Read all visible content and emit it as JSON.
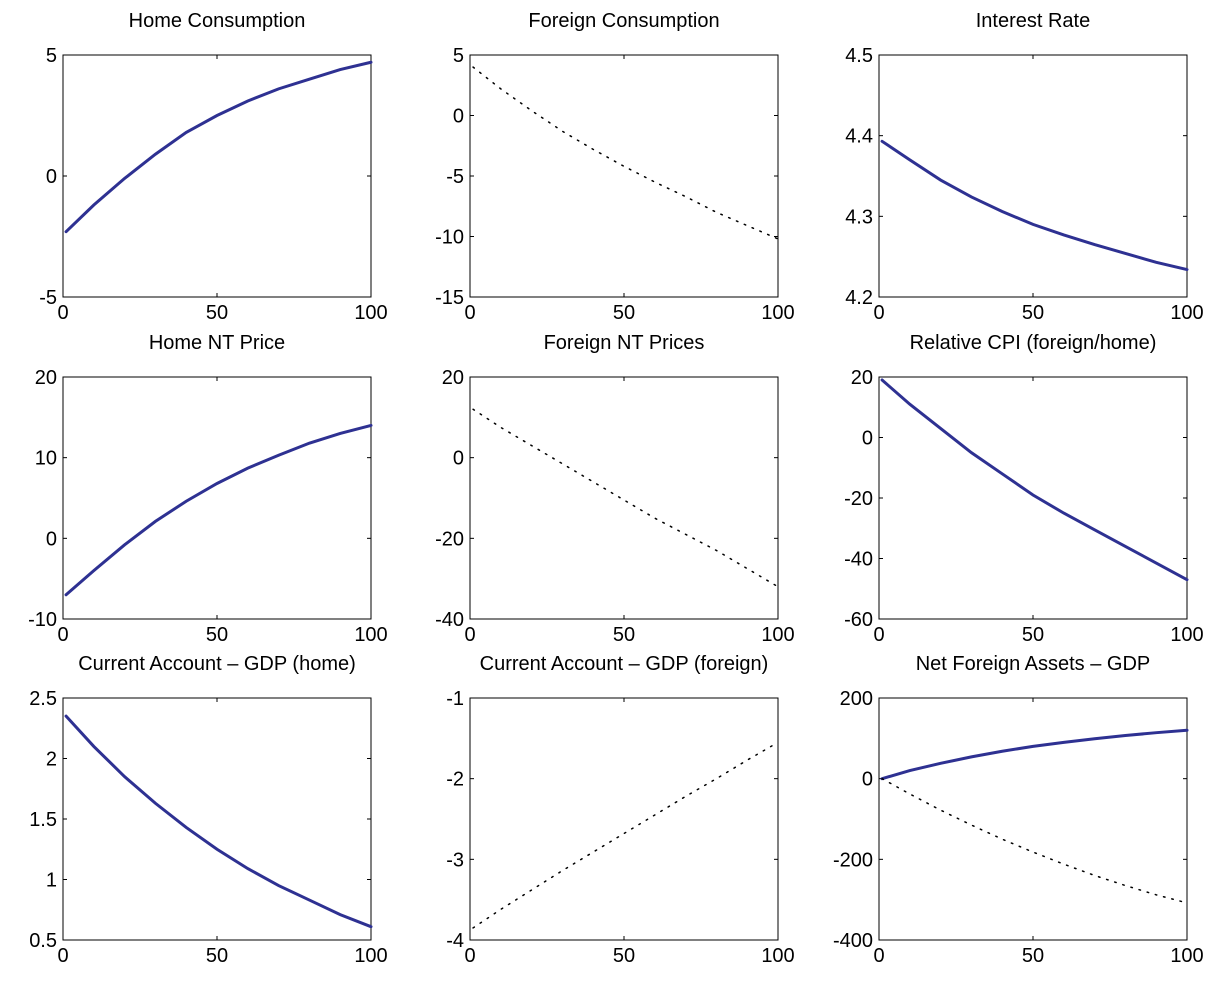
{
  "chart_data": [
    {
      "type": "line",
      "title": "Home Consumption",
      "x": [
        1,
        10,
        20,
        30,
        40,
        50,
        60,
        70,
        80,
        90,
        100
      ],
      "xlim": [
        0,
        100
      ],
      "xticks": [
        0,
        50,
        100
      ],
      "ylim": [
        -5,
        5
      ],
      "yticks": [
        -5,
        0,
        5
      ],
      "series": [
        {
          "color": "#2e3192",
          "style": "solid",
          "values": [
            -2.3,
            -1.2,
            -0.1,
            0.9,
            1.8,
            2.5,
            3.1,
            3.6,
            4.0,
            4.4,
            4.7
          ]
        }
      ]
    },
    {
      "type": "line",
      "title": "Foreign Consumption",
      "x": [
        1,
        10,
        20,
        30,
        40,
        50,
        60,
        70,
        80,
        90,
        100
      ],
      "xlim": [
        0,
        100
      ],
      "xticks": [
        0,
        50,
        100
      ],
      "ylim": [
        -15,
        5
      ],
      "yticks": [
        -15,
        -10,
        -5,
        0,
        5
      ],
      "series": [
        {
          "color": "#000000",
          "style": "dotted",
          "values": [
            4,
            2.2,
            0.4,
            -1.3,
            -2.8,
            -4.2,
            -5.5,
            -6.7,
            -8.0,
            -9.1,
            -10.2
          ]
        }
      ]
    },
    {
      "type": "line",
      "title": "Interest Rate",
      "x": [
        1,
        10,
        20,
        30,
        40,
        50,
        60,
        70,
        80,
        90,
        100
      ],
      "xlim": [
        0,
        100
      ],
      "xticks": [
        0,
        50,
        100
      ],
      "ylim": [
        4.2,
        4.5
      ],
      "yticks": [
        4.2,
        4.3,
        4.4,
        4.5
      ],
      "series": [
        {
          "color": "#2e3192",
          "style": "solid",
          "values": [
            4.393,
            4.37,
            4.345,
            4.324,
            4.306,
            4.29,
            4.277,
            4.265,
            4.254,
            4.243,
            4.234
          ]
        }
      ]
    },
    {
      "type": "line",
      "title": "Home NT Price",
      "x": [
        1,
        10,
        20,
        30,
        40,
        50,
        60,
        70,
        80,
        90,
        100
      ],
      "xlim": [
        0,
        100
      ],
      "xticks": [
        0,
        50,
        100
      ],
      "ylim": [
        -10,
        20
      ],
      "yticks": [
        -10,
        0,
        10,
        20
      ],
      "series": [
        {
          "color": "#2e3192",
          "style": "solid",
          "values": [
            -7,
            -4,
            -0.8,
            2.1,
            4.6,
            6.8,
            8.7,
            10.3,
            11.8,
            13,
            14
          ]
        }
      ]
    },
    {
      "type": "line",
      "title": "Foreign NT Prices",
      "x": [
        1,
        10,
        20,
        30,
        40,
        50,
        60,
        70,
        80,
        90,
        100
      ],
      "xlim": [
        0,
        100
      ],
      "xticks": [
        0,
        50,
        100
      ],
      "ylim": [
        -40,
        20
      ],
      "yticks": [
        -40,
        -20,
        0,
        20
      ],
      "series": [
        {
          "color": "#000000",
          "style": "dotted",
          "values": [
            12,
            7.5,
            3,
            -1.5,
            -6,
            -10.5,
            -15,
            -19,
            -23,
            -27.5,
            -32
          ]
        }
      ]
    },
    {
      "type": "line",
      "title": "Relative CPI (foreign/home)",
      "x": [
        1,
        10,
        20,
        30,
        40,
        50,
        60,
        70,
        80,
        90,
        100
      ],
      "xlim": [
        0,
        100
      ],
      "xticks": [
        0,
        50,
        100
      ],
      "ylim": [
        -60,
        20
      ],
      "yticks": [
        -60,
        -40,
        -20,
        0,
        20
      ],
      "series": [
        {
          "color": "#2e3192",
          "style": "solid",
          "values": [
            19,
            11,
            3,
            -5,
            -12,
            -19,
            -25,
            -30.5,
            -36,
            -41.5,
            -47
          ]
        }
      ]
    },
    {
      "type": "line",
      "title": "Current Account – GDP (home)",
      "x": [
        1,
        10,
        20,
        30,
        40,
        50,
        60,
        70,
        80,
        90,
        100
      ],
      "xlim": [
        0,
        100
      ],
      "xticks": [
        0,
        50,
        100
      ],
      "ylim": [
        0.5,
        2.5
      ],
      "yticks": [
        0.5,
        1,
        1.5,
        2,
        2.5
      ],
      "series": [
        {
          "color": "#2e3192",
          "style": "solid",
          "values": [
            2.35,
            2.1,
            1.85,
            1.63,
            1.43,
            1.25,
            1.09,
            0.95,
            0.83,
            0.71,
            0.61
          ]
        }
      ]
    },
    {
      "type": "line",
      "title": "Current Account – GDP (foreign)",
      "x": [
        1,
        10,
        20,
        30,
        40,
        50,
        60,
        70,
        80,
        90,
        100
      ],
      "xlim": [
        0,
        100
      ],
      "xticks": [
        0,
        50,
        100
      ],
      "ylim": [
        -4,
        -1
      ],
      "yticks": [
        -4,
        -3,
        -2,
        -1
      ],
      "series": [
        {
          "color": "#000000",
          "style": "dotted",
          "values": [
            -3.85,
            -3.62,
            -3.38,
            -3.14,
            -2.91,
            -2.68,
            -2.45,
            -2.22,
            -2.0,
            -1.77,
            -1.55
          ]
        }
      ]
    },
    {
      "type": "line",
      "title": "Net Foreign Assets – GDP",
      "x": [
        1,
        10,
        20,
        30,
        40,
        50,
        60,
        70,
        80,
        90,
        100
      ],
      "xlim": [
        0,
        100
      ],
      "xticks": [
        0,
        50,
        100
      ],
      "ylim": [
        -400,
        200
      ],
      "yticks": [
        -400,
        -200,
        0,
        200
      ],
      "series": [
        {
          "color": "#2e3192",
          "style": "solid",
          "values": [
            0,
            20,
            38,
            54,
            68,
            80,
            90,
            99,
            107,
            114,
            120
          ]
        },
        {
          "color": "#000000",
          "style": "dotted",
          "values": [
            0,
            -38,
            -78,
            -115,
            -150,
            -182,
            -212,
            -240,
            -265,
            -288,
            -308
          ]
        }
      ]
    }
  ]
}
